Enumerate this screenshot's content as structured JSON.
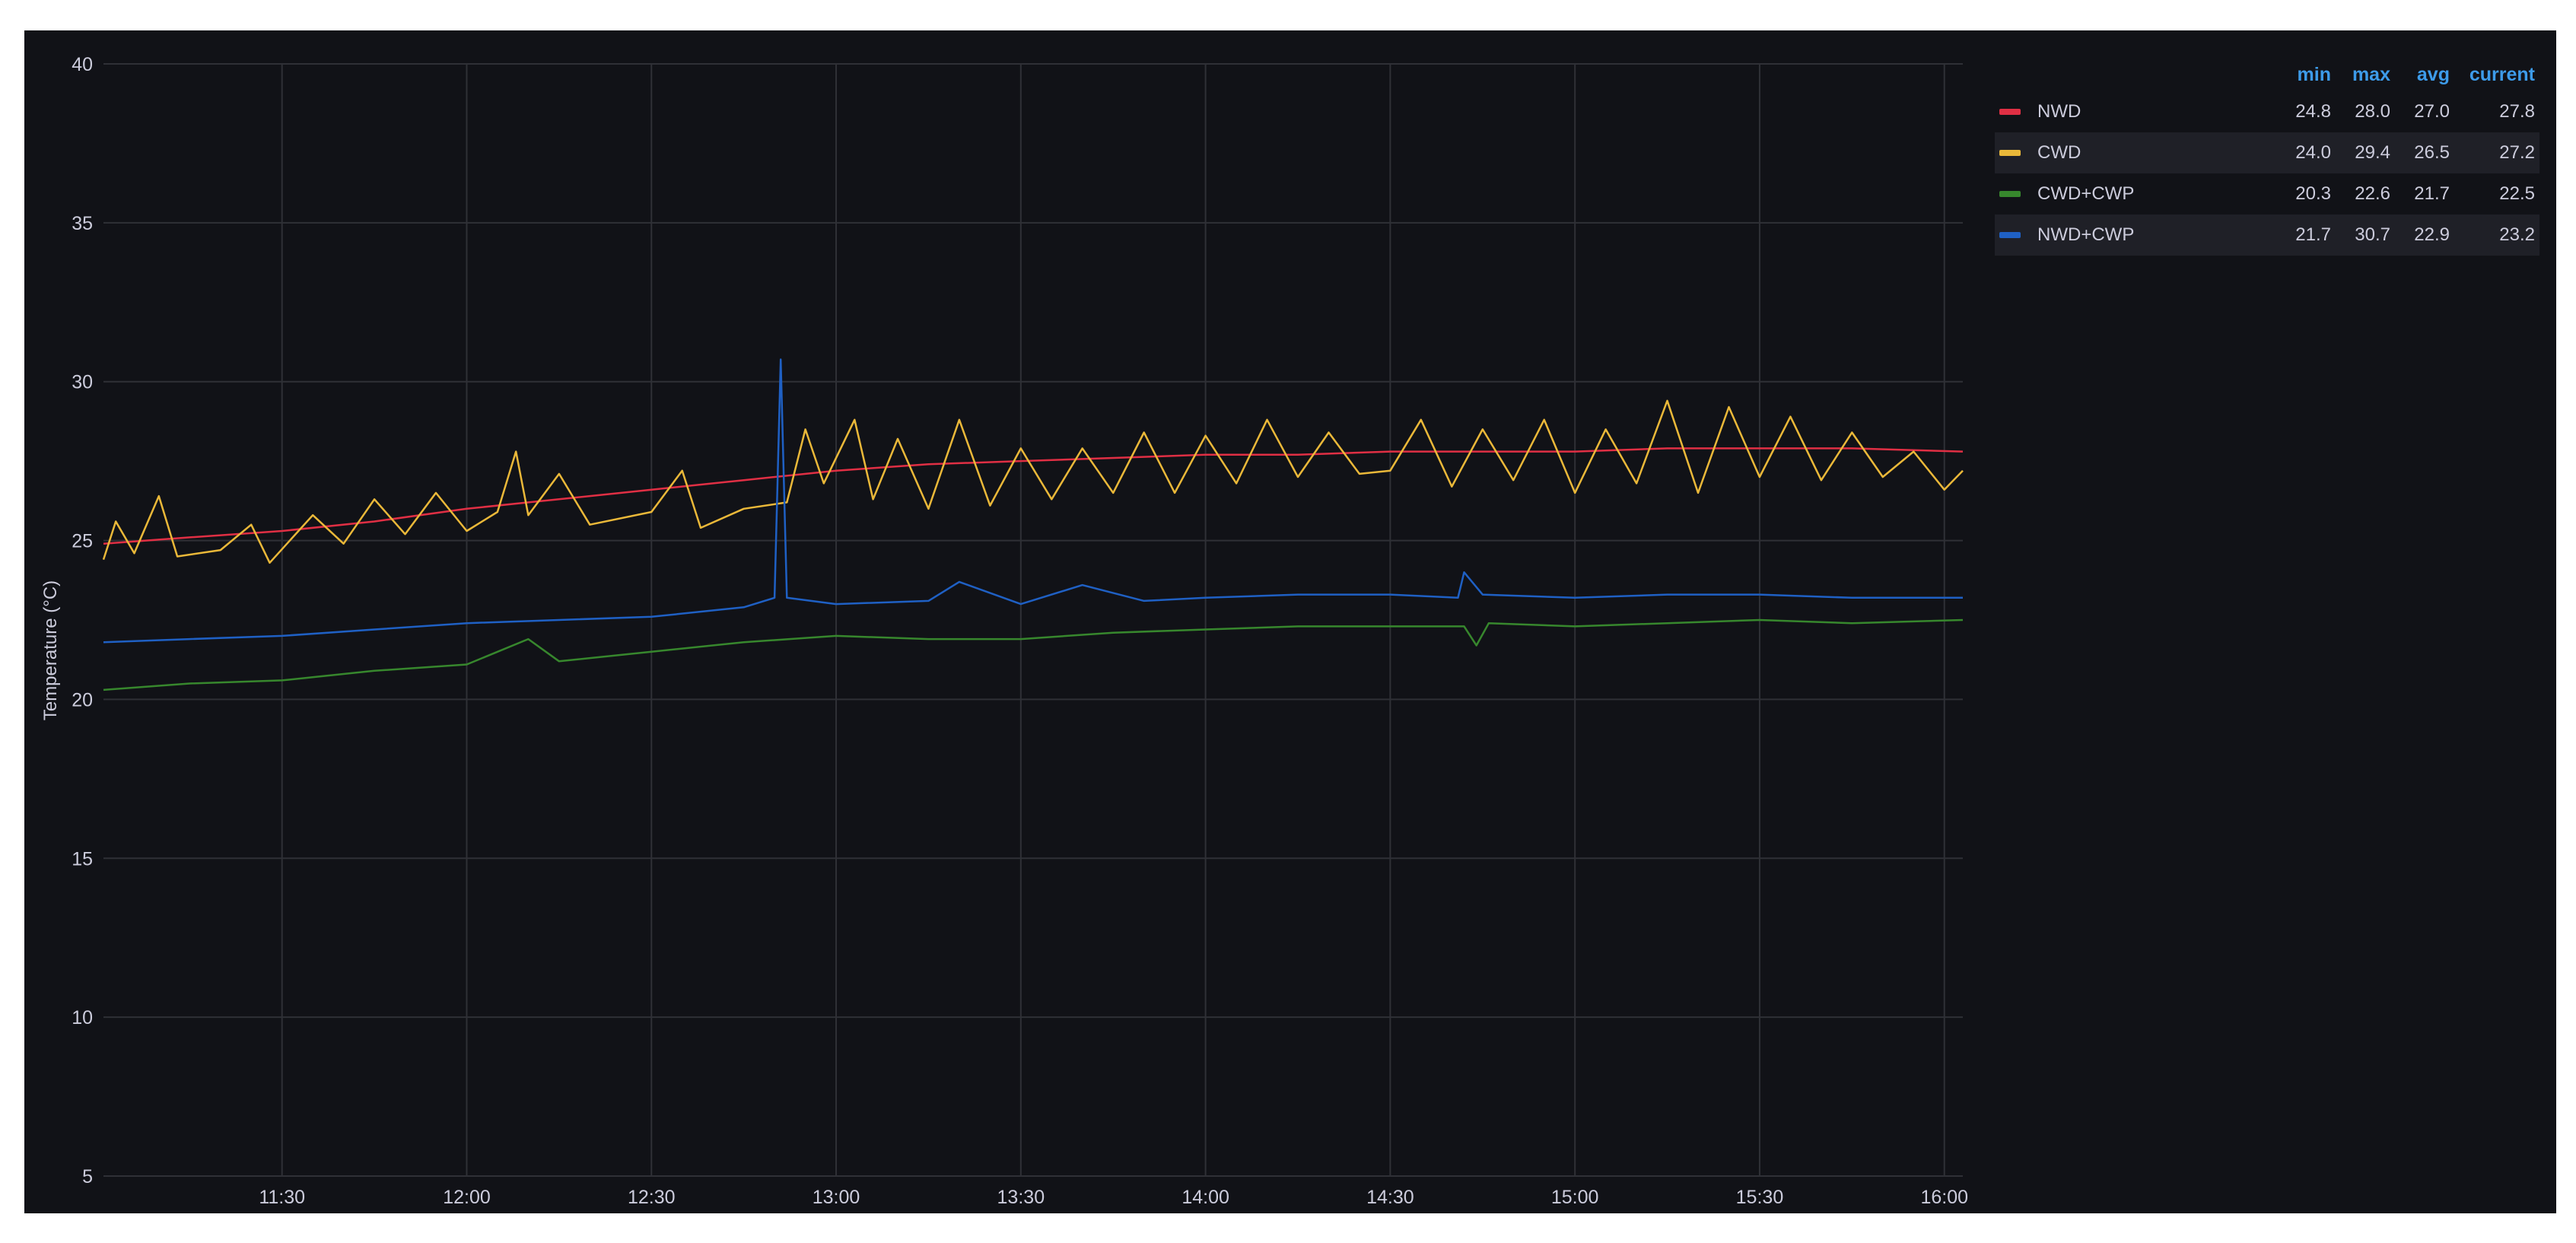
{
  "colors": {
    "background": "#111217",
    "grid": "#2f3036",
    "tick_text": "#ccccdc",
    "legend_header": "#3d9be9"
  },
  "chart_data": {
    "type": "line",
    "title": "",
    "xlabel": "",
    "ylabel": "Temperature (°C)",
    "ylim": [
      5,
      40
    ],
    "yticks": [
      "5",
      "10",
      "15",
      "20",
      "25",
      "30",
      "35",
      "40"
    ],
    "xlim": [
      "11:01",
      "16:03"
    ],
    "xticks": [
      "11:30",
      "12:00",
      "12:30",
      "13:00",
      "13:30",
      "14:00",
      "14:30",
      "15:00",
      "15:30",
      "16:00"
    ],
    "grid": true,
    "legend_position": "right",
    "legend_columns": [
      "min",
      "max",
      "avg",
      "current"
    ],
    "series": [
      {
        "name": "NWD",
        "color": "#e02f44",
        "stats": {
          "min": "24.8",
          "max": "28.0",
          "avg": "27.0",
          "current": "27.8"
        },
        "points": [
          [
            "11:01",
            24.9
          ],
          [
            "11:15",
            25.1
          ],
          [
            "11:30",
            25.3
          ],
          [
            "11:45",
            25.6
          ],
          [
            "12:00",
            26.0
          ],
          [
            "12:10",
            26.2
          ],
          [
            "12:20",
            26.4
          ],
          [
            "12:30",
            26.6
          ],
          [
            "12:45",
            26.9
          ],
          [
            "13:00",
            27.2
          ],
          [
            "13:15",
            27.4
          ],
          [
            "13:30",
            27.5
          ],
          [
            "13:45",
            27.6
          ],
          [
            "14:00",
            27.7
          ],
          [
            "14:15",
            27.7
          ],
          [
            "14:30",
            27.8
          ],
          [
            "14:45",
            27.8
          ],
          [
            "15:00",
            27.8
          ],
          [
            "15:15",
            27.9
          ],
          [
            "15:30",
            27.9
          ],
          [
            "15:45",
            27.9
          ],
          [
            "16:03",
            27.8
          ]
        ]
      },
      {
        "name": "CWD",
        "color": "#eab839",
        "stats": {
          "min": "24.0",
          "max": "29.4",
          "avg": "26.5",
          "current": "27.2"
        },
        "points": [
          [
            "11:01",
            24.4
          ],
          [
            "11:03",
            25.6
          ],
          [
            "11:06",
            24.6
          ],
          [
            "11:10",
            26.4
          ],
          [
            "11:13",
            24.5
          ],
          [
            "11:20",
            24.7
          ],
          [
            "11:25",
            25.5
          ],
          [
            "11:28",
            24.3
          ],
          [
            "11:35",
            25.8
          ],
          [
            "11:40",
            24.9
          ],
          [
            "11:45",
            26.3
          ],
          [
            "11:50",
            25.2
          ],
          [
            "11:55",
            26.5
          ],
          [
            "12:00",
            25.3
          ],
          [
            "12:05",
            25.9
          ],
          [
            "12:08",
            27.8
          ],
          [
            "12:10",
            25.8
          ],
          [
            "12:15",
            27.1
          ],
          [
            "12:20",
            25.5
          ],
          [
            "12:30",
            25.9
          ],
          [
            "12:35",
            27.2
          ],
          [
            "12:38",
            25.4
          ],
          [
            "12:45",
            26.0
          ],
          [
            "12:52",
            26.2
          ],
          [
            "12:55",
            28.5
          ],
          [
            "12:58",
            26.8
          ],
          [
            "13:03",
            28.8
          ],
          [
            "13:06",
            26.3
          ],
          [
            "13:10",
            28.2
          ],
          [
            "13:15",
            26.0
          ],
          [
            "13:20",
            28.8
          ],
          [
            "13:25",
            26.1
          ],
          [
            "13:30",
            27.9
          ],
          [
            "13:35",
            26.3
          ],
          [
            "13:40",
            27.9
          ],
          [
            "13:45",
            26.5
          ],
          [
            "13:50",
            28.4
          ],
          [
            "13:55",
            26.5
          ],
          [
            "14:00",
            28.3
          ],
          [
            "14:05",
            26.8
          ],
          [
            "14:10",
            28.8
          ],
          [
            "14:15",
            27.0
          ],
          [
            "14:20",
            28.4
          ],
          [
            "14:25",
            27.1
          ],
          [
            "14:30",
            27.2
          ],
          [
            "14:35",
            28.8
          ],
          [
            "14:40",
            26.7
          ],
          [
            "14:45",
            28.5
          ],
          [
            "14:50",
            26.9
          ],
          [
            "14:55",
            28.8
          ],
          [
            "15:00",
            26.5
          ],
          [
            "15:05",
            28.5
          ],
          [
            "15:10",
            26.8
          ],
          [
            "15:15",
            29.4
          ],
          [
            "15:20",
            26.5
          ],
          [
            "15:25",
            29.2
          ],
          [
            "15:30",
            27.0
          ],
          [
            "15:35",
            28.9
          ],
          [
            "15:40",
            26.9
          ],
          [
            "15:45",
            28.4
          ],
          [
            "15:50",
            27.0
          ],
          [
            "15:55",
            27.8
          ],
          [
            "16:00",
            26.6
          ],
          [
            "16:03",
            27.2
          ]
        ]
      },
      {
        "name": "CWD+CWP",
        "color": "#37872d",
        "stats": {
          "min": "20.3",
          "max": "22.6",
          "avg": "21.7",
          "current": "22.5"
        },
        "points": [
          [
            "11:01",
            20.3
          ],
          [
            "11:15",
            20.5
          ],
          [
            "11:30",
            20.6
          ],
          [
            "11:45",
            20.9
          ],
          [
            "12:00",
            21.1
          ],
          [
            "12:05",
            21.5
          ],
          [
            "12:10",
            21.9
          ],
          [
            "12:15",
            21.2
          ],
          [
            "12:30",
            21.5
          ],
          [
            "12:45",
            21.8
          ],
          [
            "13:00",
            22.0
          ],
          [
            "13:15",
            21.9
          ],
          [
            "13:30",
            21.9
          ],
          [
            "13:45",
            22.1
          ],
          [
            "14:00",
            22.2
          ],
          [
            "14:15",
            22.3
          ],
          [
            "14:30",
            22.3
          ],
          [
            "14:42",
            22.3
          ],
          [
            "14:44",
            21.7
          ],
          [
            "14:46",
            22.4
          ],
          [
            "15:00",
            22.3
          ],
          [
            "15:15",
            22.4
          ],
          [
            "15:30",
            22.5
          ],
          [
            "15:45",
            22.4
          ],
          [
            "16:03",
            22.5
          ]
        ]
      },
      {
        "name": "NWD+CWP",
        "color": "#1f60c4",
        "stats": {
          "min": "21.7",
          "max": "30.7",
          "avg": "22.9",
          "current": "23.2"
        },
        "points": [
          [
            "11:01",
            21.8
          ],
          [
            "11:15",
            21.9
          ],
          [
            "11:30",
            22.0
          ],
          [
            "11:45",
            22.2
          ],
          [
            "12:00",
            22.4
          ],
          [
            "12:15",
            22.5
          ],
          [
            "12:30",
            22.6
          ],
          [
            "12:45",
            22.9
          ],
          [
            "12:50",
            23.2
          ],
          [
            "12:51",
            30.7
          ],
          [
            "12:52",
            23.2
          ],
          [
            "13:00",
            23.0
          ],
          [
            "13:15",
            23.1
          ],
          [
            "13:20",
            23.7
          ],
          [
            "13:30",
            23.0
          ],
          [
            "13:40",
            23.6
          ],
          [
            "13:50",
            23.1
          ],
          [
            "14:00",
            23.2
          ],
          [
            "14:15",
            23.3
          ],
          [
            "14:30",
            23.3
          ],
          [
            "14:41",
            23.2
          ],
          [
            "14:42",
            24.0
          ],
          [
            "14:45",
            23.3
          ],
          [
            "15:00",
            23.2
          ],
          [
            "15:15",
            23.3
          ],
          [
            "15:30",
            23.3
          ],
          [
            "15:45",
            23.2
          ],
          [
            "16:03",
            23.2
          ]
        ]
      }
    ]
  }
}
